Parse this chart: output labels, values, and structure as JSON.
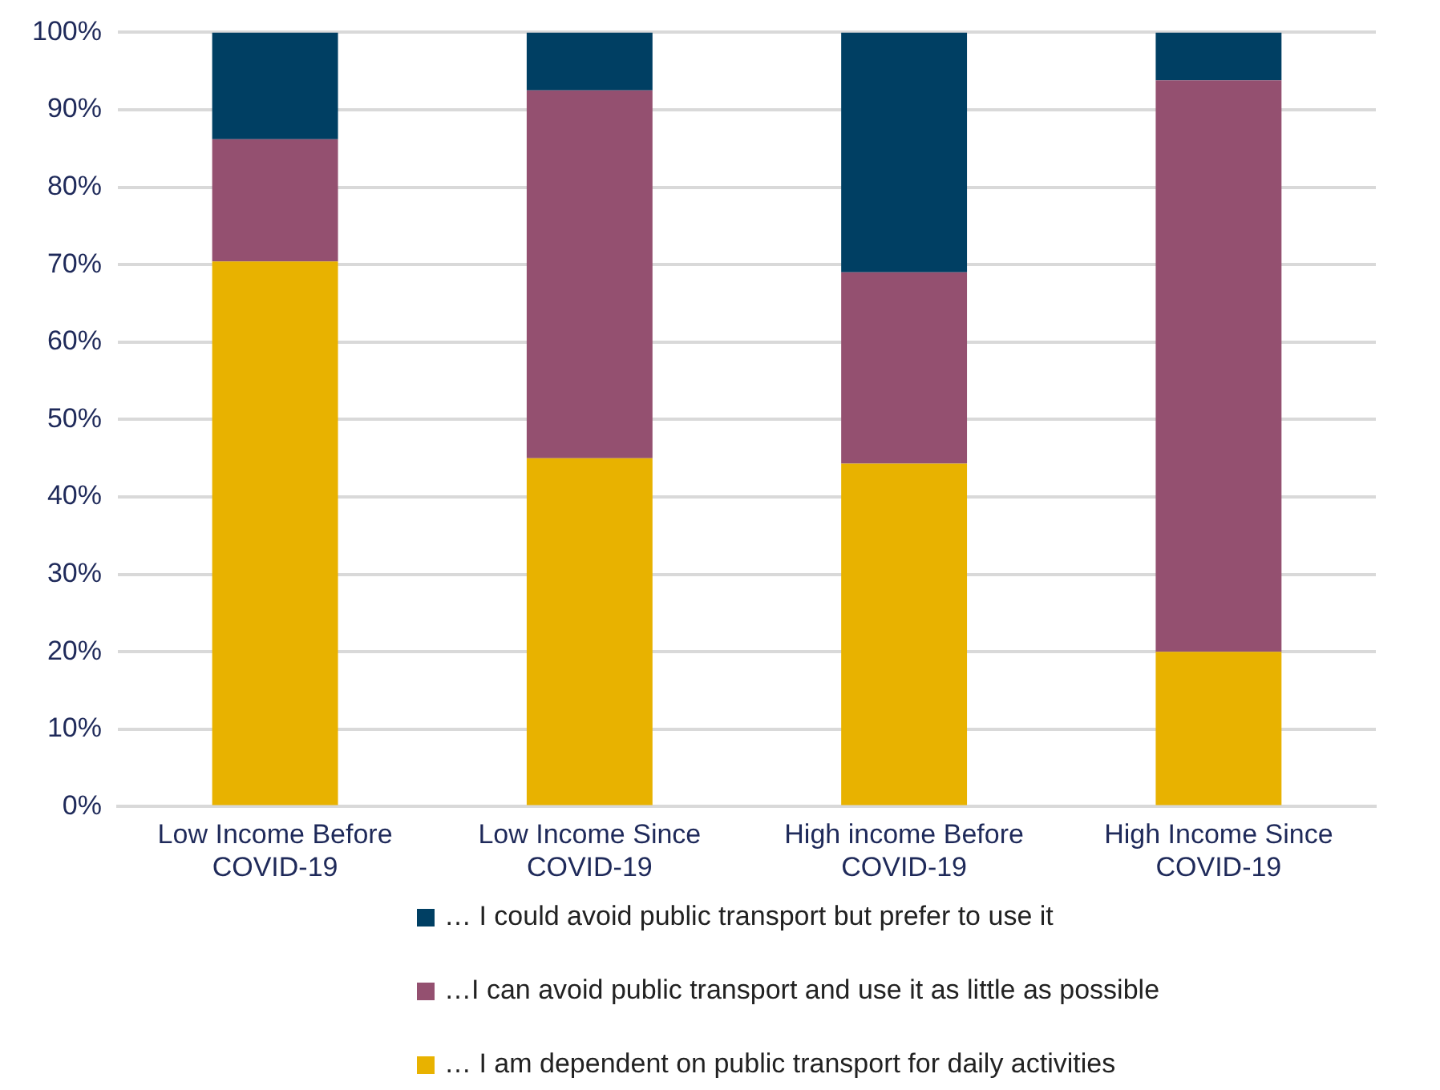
{
  "chart_data": {
    "type": "bar",
    "stacked": true,
    "categories": [
      "Low Income Before COVID-19",
      "Low Income Since COVID-19",
      "High income Before COVID-19",
      "High Income Since COVID-19"
    ],
    "series": [
      {
        "name": "… I am dependent on public transport for daily activities",
        "color": "#e8b200",
        "values": [
          70.4,
          45.0,
          44.3,
          20.0
        ]
      },
      {
        "name": "…I can avoid public transport and use it as little as possible",
        "color": "#945070",
        "values": [
          15.8,
          47.5,
          24.7,
          73.8
        ]
      },
      {
        "name": "… I could avoid public transport but prefer to use it",
        "color": "#003f63",
        "values": [
          13.8,
          7.5,
          31.0,
          6.2
        ]
      }
    ],
    "ylim": [
      0,
      100
    ],
    "yticks": [
      {
        "value": 0,
        "label": "0%"
      },
      {
        "value": 10,
        "label": "10%"
      },
      {
        "value": 20,
        "label": "20%"
      },
      {
        "value": 30,
        "label": "30%"
      },
      {
        "value": 40,
        "label": "40%"
      },
      {
        "value": 50,
        "label": "50%"
      },
      {
        "value": 60,
        "label": "60%"
      },
      {
        "value": 70,
        "label": "70%"
      },
      {
        "value": 80,
        "label": "80%"
      },
      {
        "value": 90,
        "label": "90%"
      },
      {
        "value": 100,
        "label": "100%"
      }
    ],
    "grid": "y",
    "legend": "bottom"
  }
}
